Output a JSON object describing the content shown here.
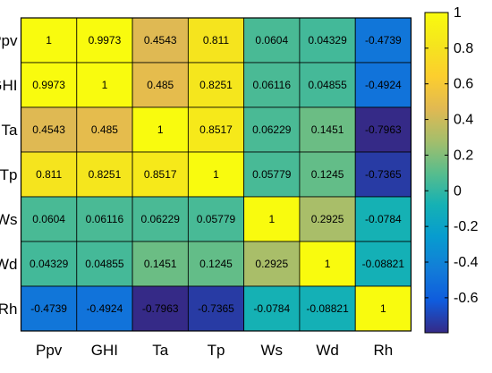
{
  "chart_data": {
    "type": "heatmap",
    "title": "",
    "xlabel": "",
    "ylabel": "",
    "row_labels": [
      "Ppv",
      "GHI",
      "Ta",
      "Tp",
      "Ws",
      "Wd",
      "Rh"
    ],
    "col_labels": [
      "Ppv",
      "GHI",
      "Ta",
      "Tp",
      "Ws",
      "Wd",
      "Rh"
    ],
    "matrix": [
      [
        "1",
        "0.9973",
        "0.4543",
        "0.811",
        "0.0604",
        "0.04329",
        "-0.4739"
      ],
      [
        "0.9973",
        "1",
        "0.485",
        "0.8251",
        "0.06116",
        "0.04855",
        "-0.4924"
      ],
      [
        "0.4543",
        "0.485",
        "1",
        "0.8517",
        "0.06229",
        "0.1451",
        "-0.7963"
      ],
      [
        "0.811",
        "0.8251",
        "0.8517",
        "1",
        "0.05779",
        "0.1245",
        "-0.7365"
      ],
      [
        "0.0604",
        "0.06116",
        "0.06229",
        "0.05779",
        "1",
        "0.2925",
        "-0.0784"
      ],
      [
        "0.04329",
        "0.04855",
        "0.1451",
        "0.1245",
        "0.2925",
        "1",
        "-0.08821"
      ],
      [
        "-0.4739",
        "-0.4924",
        "-0.7963",
        "-0.7365",
        "-0.0784",
        "-0.08821",
        "1"
      ]
    ],
    "colormap": "parula",
    "colorbar": {
      "range": [
        -0.7963,
        1
      ],
      "ticks": [
        1,
        0.8,
        0.6,
        0.4,
        0.2,
        0,
        -0.2,
        -0.4,
        -0.6
      ],
      "tick_labels": [
        "1",
        "0.8",
        "0.6",
        "0.4",
        "0.2",
        "0",
        "-0.2",
        "-0.4",
        "-0.6"
      ],
      "placement": "right"
    },
    "grid": true
  }
}
